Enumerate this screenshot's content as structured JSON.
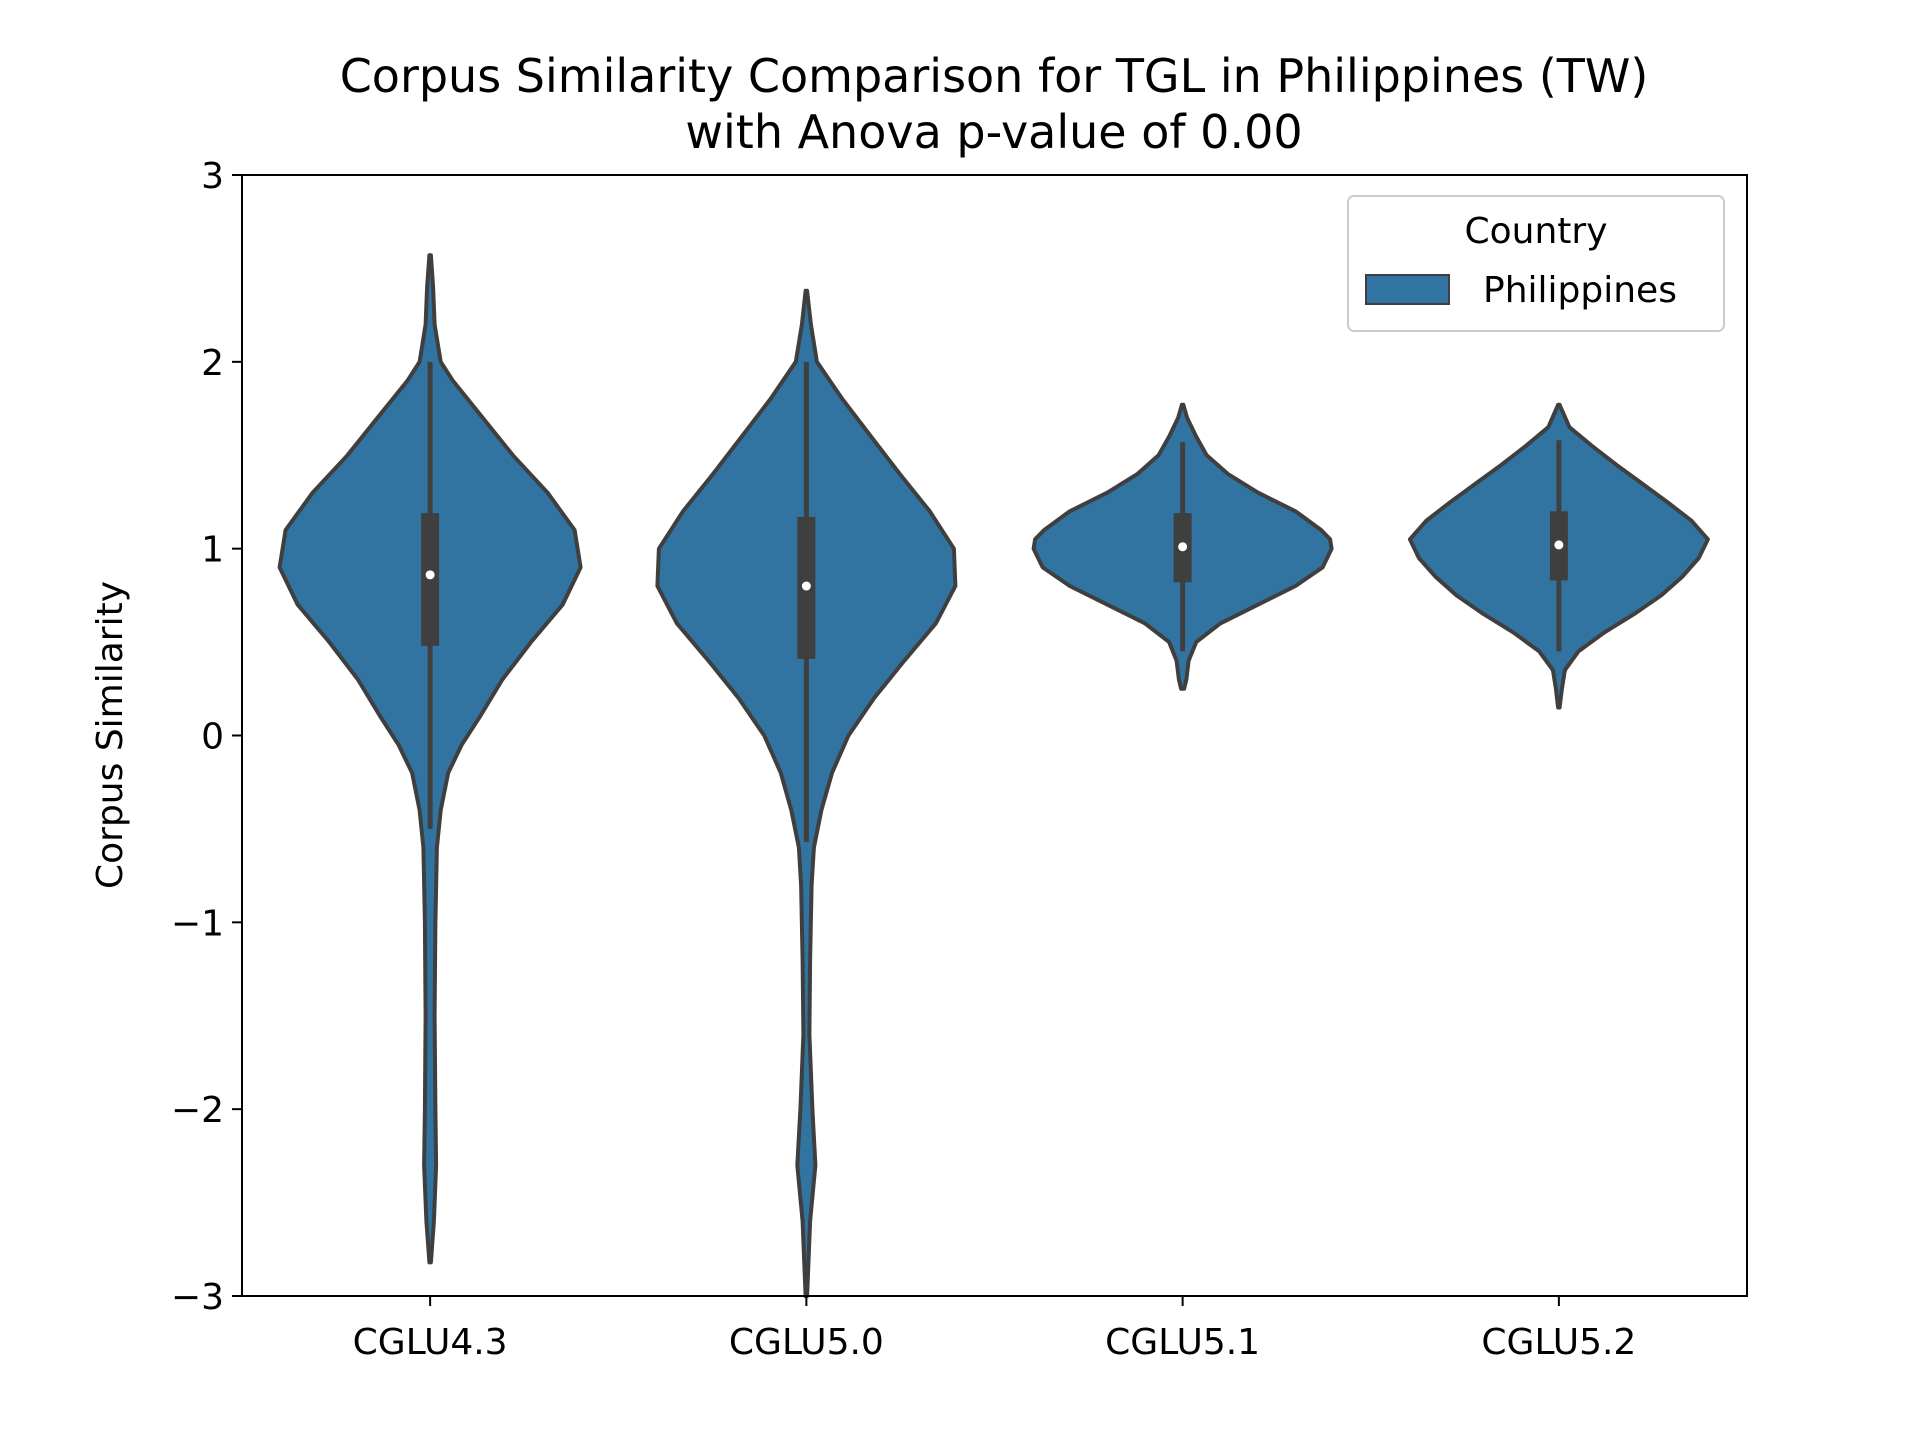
{
  "colors": {
    "violin_fill": "#3274a1",
    "violin_edge": "#3f3f3f",
    "box": "#3f3f3f",
    "median": "#ffffff",
    "axis": "#000000",
    "background": "#ffffff"
  },
  "chart_data": {
    "type": "violin",
    "title": "Corpus Similarity Comparison for TGL in Philippines (TW)",
    "subtitle": "with Anova p-value of 0.00",
    "xlabel": "",
    "ylabel": "Corpus Similarity",
    "ylim": [
      -3,
      3
    ],
    "y_ticks": [
      -3,
      -2,
      -1,
      0,
      1,
      2,
      3
    ],
    "y_tick_labels": [
      "−3",
      "−2",
      "−1",
      "0",
      "1",
      "2",
      "3"
    ],
    "categories": [
      "CGLU4.3",
      "CGLU5.0",
      "CGLU5.1",
      "CGLU5.2"
    ],
    "grid": false,
    "legend": {
      "title": "Country",
      "entries": [
        "Philippines"
      ],
      "placement": "top-right"
    },
    "series": [
      {
        "name": "Philippines",
        "groups": [
          {
            "category": "CGLU4.3",
            "min": -2.82,
            "max": 2.57,
            "q1": 0.48,
            "median": 0.86,
            "q3": 1.19,
            "whisker_low": -0.5,
            "whisker_high": 2.0,
            "density": [
              [
                -2.82,
                0.005
              ],
              [
                -2.6,
                0.025
              ],
              [
                -2.3,
                0.04
              ],
              [
                -2.0,
                0.035
              ],
              [
                -1.5,
                0.03
              ],
              [
                -1.0,
                0.035
              ],
              [
                -0.6,
                0.045
              ],
              [
                -0.4,
                0.07
              ],
              [
                -0.2,
                0.12
              ],
              [
                -0.05,
                0.21
              ],
              [
                0.1,
                0.33
              ],
              [
                0.3,
                0.48
              ],
              [
                0.5,
                0.67
              ],
              [
                0.7,
                0.88
              ],
              [
                0.9,
                1.0
              ],
              [
                1.1,
                0.96
              ],
              [
                1.3,
                0.78
              ],
              [
                1.5,
                0.55
              ],
              [
                1.7,
                0.35
              ],
              [
                1.9,
                0.15
              ],
              [
                2.0,
                0.07
              ],
              [
                2.2,
                0.03
              ],
              [
                2.4,
                0.02
              ],
              [
                2.57,
                0.005
              ]
            ]
          },
          {
            "category": "CGLU5.0",
            "min": -3.0,
            "max": 2.38,
            "q1": 0.41,
            "median": 0.8,
            "q3": 1.17,
            "whisker_low": -0.57,
            "whisker_high": 2.0,
            "density": [
              [
                -3.0,
                0.005
              ],
              [
                -2.6,
                0.025
              ],
              [
                -2.3,
                0.06
              ],
              [
                -2.0,
                0.04
              ],
              [
                -1.6,
                0.02
              ],
              [
                -1.2,
                0.025
              ],
              [
                -0.8,
                0.035
              ],
              [
                -0.6,
                0.05
              ],
              [
                -0.4,
                0.1
              ],
              [
                -0.2,
                0.17
              ],
              [
                0.0,
                0.28
              ],
              [
                0.2,
                0.45
              ],
              [
                0.4,
                0.65
              ],
              [
                0.6,
                0.86
              ],
              [
                0.8,
                0.99
              ],
              [
                1.0,
                0.98
              ],
              [
                1.2,
                0.82
              ],
              [
                1.4,
                0.62
              ],
              [
                1.6,
                0.43
              ],
              [
                1.8,
                0.24
              ],
              [
                2.0,
                0.07
              ],
              [
                2.2,
                0.03
              ],
              [
                2.38,
                0.005
              ]
            ]
          },
          {
            "category": "CGLU5.1",
            "min": 0.25,
            "max": 1.77,
            "q1": 0.82,
            "median": 1.01,
            "q3": 1.19,
            "whisker_low": 0.45,
            "whisker_high": 1.57,
            "density": [
              [
                0.25,
                0.01
              ],
              [
                0.3,
                0.025
              ],
              [
                0.4,
                0.04
              ],
              [
                0.5,
                0.09
              ],
              [
                0.6,
                0.25
              ],
              [
                0.7,
                0.5
              ],
              [
                0.8,
                0.75
              ],
              [
                0.9,
                0.93
              ],
              [
                1.0,
                0.99
              ],
              [
                1.05,
                0.98
              ],
              [
                1.1,
                0.92
              ],
              [
                1.2,
                0.75
              ],
              [
                1.3,
                0.5
              ],
              [
                1.4,
                0.3
              ],
              [
                1.5,
                0.16
              ],
              [
                1.6,
                0.09
              ],
              [
                1.7,
                0.03
              ],
              [
                1.77,
                0.005
              ]
            ]
          },
          {
            "category": "CGLU5.2",
            "min": 0.15,
            "max": 1.77,
            "q1": 0.83,
            "median": 1.02,
            "q3": 1.2,
            "whisker_low": 0.45,
            "whisker_high": 1.58,
            "density": [
              [
                0.15,
                0.005
              ],
              [
                0.25,
                0.02
              ],
              [
                0.35,
                0.04
              ],
              [
                0.45,
                0.13
              ],
              [
                0.55,
                0.3
              ],
              [
                0.65,
                0.5
              ],
              [
                0.75,
                0.68
              ],
              [
                0.85,
                0.82
              ],
              [
                0.95,
                0.93
              ],
              [
                1.05,
                0.99
              ],
              [
                1.15,
                0.88
              ],
              [
                1.25,
                0.72
              ],
              [
                1.35,
                0.55
              ],
              [
                1.45,
                0.38
              ],
              [
                1.55,
                0.22
              ],
              [
                1.65,
                0.07
              ],
              [
                1.77,
                0.005
              ]
            ]
          }
        ]
      }
    ]
  }
}
